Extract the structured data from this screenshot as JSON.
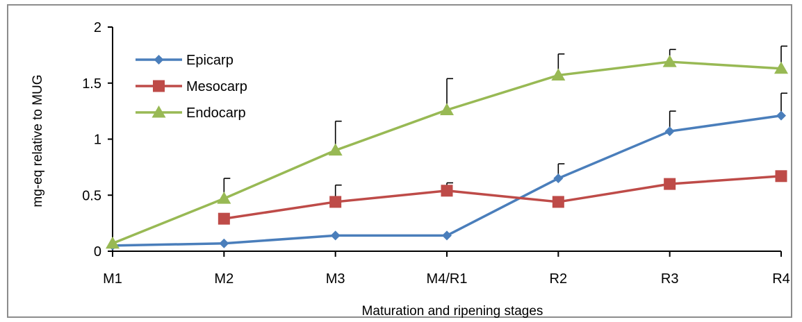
{
  "chart_data": {
    "type": "line",
    "title": "",
    "xlabel": "Maturation and ripening stages",
    "ylabel": "mg-eq relative to MUG",
    "categories": [
      "M1",
      "M2",
      "M3",
      "M4/R1",
      "R2",
      "R3",
      "R4"
    ],
    "ylim": [
      0,
      2
    ],
    "yticks": [
      "0",
      "0.5",
      "1",
      "1.5",
      "2"
    ],
    "grid": false,
    "legend_position": "top-left",
    "series": [
      {
        "name": "Epicarp",
        "color": "#4a7ebb",
        "marker": "diamond",
        "values": [
          0.05,
          0.07,
          0.14,
          0.14,
          0.65,
          1.07,
          1.21
        ],
        "error": [
          0,
          0,
          0,
          0,
          0.13,
          0.18,
          0.2
        ]
      },
      {
        "name": "Mesocarp",
        "color": "#be4b48",
        "marker": "square",
        "values": [
          null,
          0.29,
          0.44,
          0.54,
          0.44,
          0.6,
          0.67
        ],
        "error": [
          0,
          0,
          0.15,
          0.07,
          0,
          0,
          0
        ]
      },
      {
        "name": "Endocarp",
        "color": "#98b954",
        "marker": "triangle",
        "values": [
          0.07,
          0.47,
          0.9,
          1.26,
          1.57,
          1.69,
          1.63
        ],
        "error": [
          0,
          0.18,
          0.26,
          0.28,
          0.19,
          0.11,
          0.2
        ]
      }
    ]
  }
}
